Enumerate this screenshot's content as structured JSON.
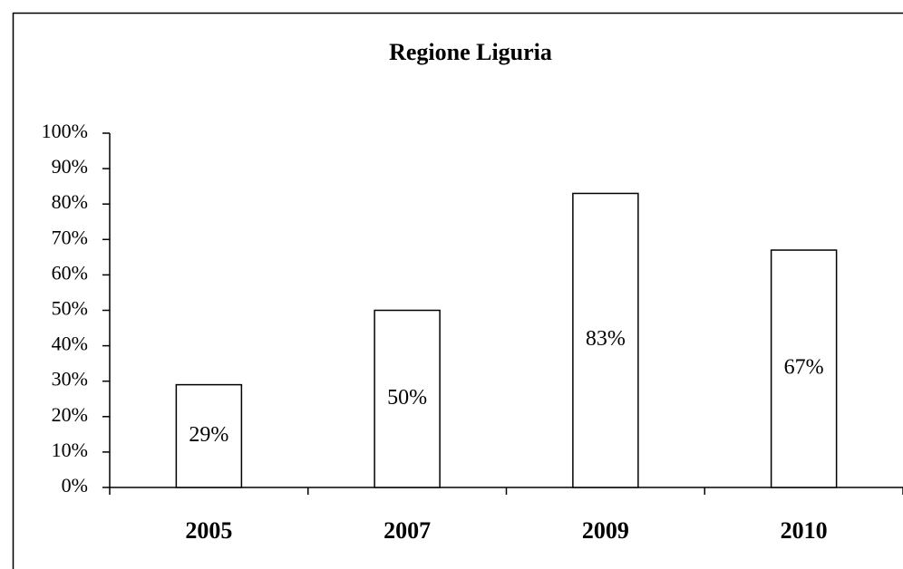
{
  "chart_data": {
    "type": "bar",
    "title": "Regione Liguria",
    "categories": [
      "2005",
      "2007",
      "2009",
      "2010"
    ],
    "values": [
      29,
      50,
      83,
      67
    ],
    "value_labels": [
      "29%",
      "50%",
      "83%",
      "67%"
    ],
    "color": "#ffffff",
    "ylim": [
      0,
      100
    ],
    "yticks": [
      {
        "value": 0,
        "label": "0%"
      },
      {
        "value": 10,
        "label": "10%"
      },
      {
        "value": 20,
        "label": "20%"
      },
      {
        "value": 30,
        "label": "30%"
      },
      {
        "value": 40,
        "label": "40%"
      },
      {
        "value": 50,
        "label": "50%"
      },
      {
        "value": 60,
        "label": "60%"
      },
      {
        "value": 70,
        "label": "70%"
      },
      {
        "value": 80,
        "label": "80%"
      },
      {
        "value": 90,
        "label": "90%"
      },
      {
        "value": 100,
        "label": "100%"
      }
    ],
    "grid": false
  }
}
